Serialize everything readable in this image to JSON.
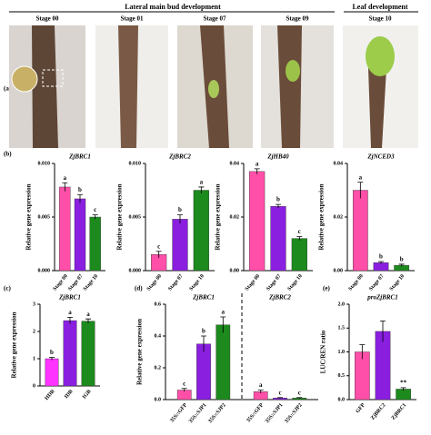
{
  "panel_a": {
    "label": "(a)",
    "header_left": "Lateral main bud development",
    "header_right": "Leaf development",
    "stages": [
      "Stage 00",
      "Stage 01",
      "Stage 07",
      "Stage 09",
      "Stage 10"
    ]
  },
  "panel_labels": [
    "(b)",
    "(c)",
    "(d)",
    "(e)"
  ],
  "chart_data": [
    {
      "type": "bar",
      "title": "ZjBRC1",
      "ylabel": "Relative gene expression",
      "categories": [
        "Stage 00",
        "Stage 07",
        "Stage 10"
      ],
      "values": [
        0.0078,
        0.0067,
        0.005
      ],
      "errors": [
        0.0004,
        0.0004,
        0.0002
      ],
      "annotations": [
        "a",
        "b",
        "c"
      ],
      "colors": [
        "#ff4fa8",
        "#8a1fe0",
        "#1c8a1c"
      ],
      "ylim": [
        0,
        0.01
      ],
      "yticks": [
        {
          "value": 0,
          "label": "0.000"
        },
        0.005,
        {
          "value": 0.01,
          "label": "0.010"
        }
      ]
    },
    {
      "type": "bar",
      "title": "ZjBRC2",
      "ylabel": "Relative gene expression",
      "categories": [
        "Stage 00",
        "Stage 07",
        "Stage 10"
      ],
      "values": [
        0.0015,
        0.0048,
        0.0075
      ],
      "errors": [
        0.0003,
        0.0004,
        0.0003
      ],
      "annotations": [
        "c",
        "b",
        "a"
      ],
      "colors": [
        "#ff4fa8",
        "#8a1fe0",
        "#1c8a1c"
      ],
      "ylim": [
        0,
        0.01
      ],
      "yticks": [
        {
          "value": 0,
          "label": "0.000"
        },
        0.005,
        {
          "value": 0.01,
          "label": "0.010"
        }
      ]
    },
    {
      "type": "bar",
      "title": "ZjHB40",
      "ylabel": "Relative gene expression",
      "categories": [
        "Stage 00",
        "Stage 07",
        "Stage 10"
      ],
      "values": [
        0.037,
        0.024,
        0.012
      ],
      "errors": [
        0.001,
        0.0007,
        0.0007
      ],
      "annotations": [
        "a",
        "b",
        "c"
      ],
      "colors": [
        "#ff4fa8",
        "#8a1fe0",
        "#1c8a1c"
      ],
      "ylim": [
        0,
        0.04
      ],
      "yticks": [
        {
          "value": 0,
          "label": "0.00"
        },
        0.02,
        0.04
      ]
    },
    {
      "type": "bar",
      "title": "ZjNCED3",
      "ylabel": "Relative gene expression",
      "categories": [
        "Stage 00",
        "Stage 07",
        "Stage 10"
      ],
      "values": [
        0.03,
        0.003,
        0.002
      ],
      "errors": [
        0.003,
        0.0004,
        0.0004
      ],
      "annotations": [
        "a",
        "b",
        "b"
      ],
      "colors": [
        "#ff4fa8",
        "#8a1fe0",
        "#1c8a1c"
      ],
      "ylim": [
        0,
        0.04
      ],
      "yticks": [
        {
          "value": 0,
          "label": "0.00"
        },
        0.02,
        0.04
      ]
    },
    {
      "type": "bar",
      "title": "ZjBRC1",
      "ylabel": "Relative gene expression",
      "categories": [
        "HDB",
        "IDB",
        "IGB"
      ],
      "values": [
        1.0,
        2.4,
        2.38
      ],
      "errors": [
        0.05,
        0.12,
        0.08
      ],
      "annotations": [
        "b",
        "a",
        "a"
      ],
      "colors": [
        "#ff33ff",
        "#8a1fe0",
        "#1c8a1c"
      ],
      "ylim": [
        0,
        3
      ],
      "yticks": [
        0,
        1,
        2,
        3
      ]
    },
    {
      "type": "grouped-bar",
      "ylabel": "Relative gene expression",
      "ylim": [
        0,
        0.6
      ],
      "yticks": [
        {
          "value": 0,
          "label": "0.0"
        },
        0.2,
        0.4,
        0.6
      ],
      "groups": [
        {
          "title": "ZjBRC1",
          "categories": [
            "35S::GFP",
            "35S::SJP1",
            "35S::SJP2"
          ],
          "values": [
            0.06,
            0.35,
            0.47
          ],
          "errors": [
            0.01,
            0.05,
            0.05
          ],
          "annotations": [
            "c",
            "b",
            "a"
          ],
          "colors": [
            "#ff4fa8",
            "#8a1fe0",
            "#1c8a1c"
          ]
        },
        {
          "title": "ZjBRC2",
          "categories": [
            "35S::GFP",
            "35S::SJP1",
            "35S::SJP2"
          ],
          "values": [
            0.05,
            0.01,
            0.01
          ],
          "errors": [
            0.01,
            0.003,
            0.003
          ],
          "annotations": [
            "a",
            "c",
            "c"
          ],
          "colors": [
            "#ff4fa8",
            "#8a1fe0",
            "#1c8a1c"
          ]
        }
      ]
    },
    {
      "type": "bar",
      "title": "proZjBRC1",
      "ylabel": "LUC/REN ratio",
      "categories": [
        "GFP",
        "ZjBRC2",
        "ZjBRC1"
      ],
      "values": [
        1.0,
        1.43,
        0.22
      ],
      "errors": [
        0.15,
        0.22,
        0.03
      ],
      "annotations": [
        null,
        null,
        "**"
      ],
      "colors": [
        "#ff4fa8",
        "#8a1fe0",
        "#1c8a1c"
      ],
      "ylim": [
        0,
        2
      ],
      "yticks": [
        {
          "value": 0,
          "label": "0.0"
        },
        0.5,
        {
          "value": 1,
          "label": "1.0"
        },
        1.5,
        {
          "value": 2,
          "label": "2.0"
        }
      ]
    }
  ]
}
